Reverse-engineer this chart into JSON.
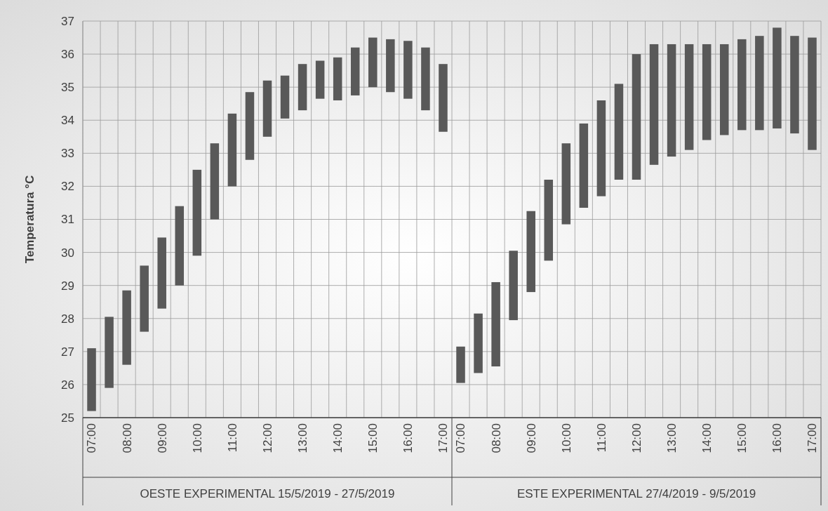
{
  "chart_data": {
    "type": "bar",
    "ylabel": "Temperatura °C",
    "categories": [
      "07:00",
      null,
      "08:00",
      null,
      "09:00",
      null,
      "10:00",
      null,
      "11:00",
      null,
      "12:00",
      null,
      "13:00",
      null,
      "14:00",
      null,
      "15:00",
      null,
      "16:00",
      null,
      "17:00",
      "07:00",
      null,
      "08:00",
      null,
      "09:00",
      null,
      "10:00",
      null,
      "11:00",
      null,
      "12:00",
      null,
      "13:00",
      null,
      "14:00",
      null,
      "15:00",
      null,
      "16:00",
      null,
      "17:00"
    ],
    "base": [
      25.2,
      25.9,
      26.6,
      27.6,
      28.3,
      29.0,
      29.9,
      31.0,
      32.0,
      32.8,
      33.5,
      34.05,
      34.3,
      34.65,
      34.6,
      34.75,
      35.0,
      34.85,
      34.65,
      34.3,
      33.65,
      26.05,
      26.35,
      26.55,
      27.95,
      28.8,
      29.75,
      30.85,
      31.35,
      31.7,
      32.2,
      32.2,
      32.65,
      32.9,
      33.1,
      33.4,
      33.55,
      33.7,
      33.7,
      33.75,
      33.6,
      33.1
    ],
    "values": [
      1.9,
      2.15,
      2.25,
      2.0,
      2.15,
      2.4,
      2.6,
      2.3,
      2.2,
      2.05,
      1.7,
      1.3,
      1.4,
      1.15,
      1.3,
      1.45,
      1.5,
      1.6,
      1.75,
      1.9,
      2.05,
      1.1,
      1.8,
      2.55,
      2.1,
      2.45,
      2.45,
      2.45,
      2.55,
      2.9,
      2.9,
      3.8,
      3.65,
      3.4,
      3.2,
      2.9,
      2.75,
      2.75,
      2.85,
      3.05,
      2.95,
      3.4
    ],
    "color": "#595959",
    "ylim": [
      25,
      37
    ],
    "yticks": [
      25,
      26,
      27,
      28,
      29,
      30,
      31,
      32,
      33,
      34,
      35,
      36,
      37
    ],
    "grid": true,
    "annotations": [
      "OESTE EXPERIMENTAL 15/5/2019 - 27/5/2019",
      "ESTE EXPERIMENTAL 27/4/2019 - 9/5/2019"
    ]
  }
}
